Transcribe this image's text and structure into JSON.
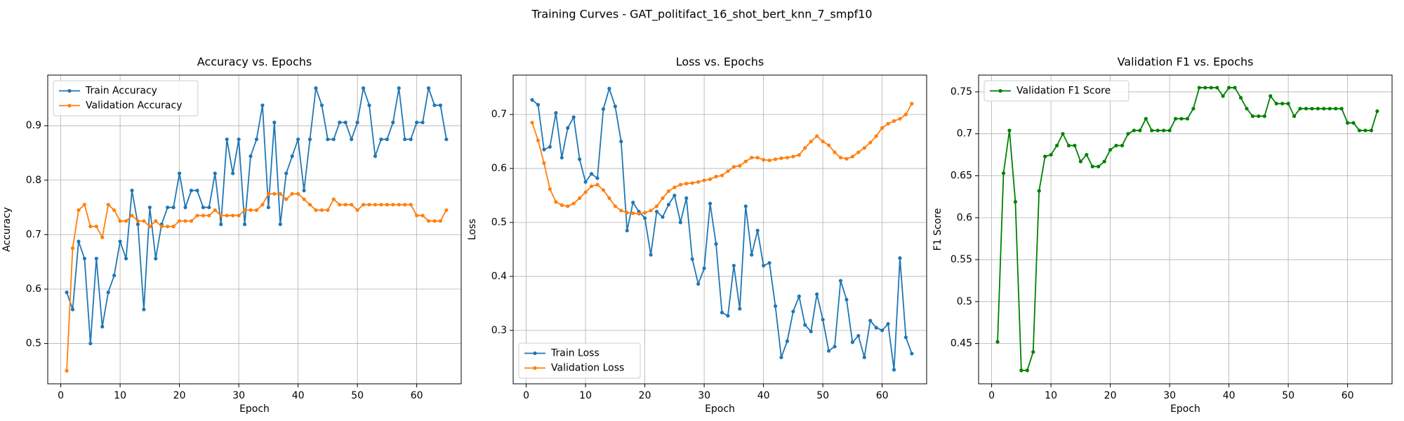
{
  "title": "Training Curves - GAT_politifact_16_shot_bert_knn_7_smpf10",
  "chart_data": [
    {
      "type": "line",
      "title": "Accuracy vs. Epochs",
      "x_label": "Epoch",
      "y_label": "Accuracy",
      "x": [
        1,
        2,
        3,
        4,
        5,
        6,
        7,
        8,
        9,
        10,
        11,
        12,
        13,
        14,
        15,
        16,
        17,
        18,
        19,
        20,
        21,
        22,
        23,
        24,
        25,
        26,
        27,
        28,
        29,
        30,
        31,
        32,
        33,
        34,
        35,
        36,
        37,
        38,
        39,
        40,
        41,
        42,
        43,
        44,
        45,
        46,
        47,
        48,
        49,
        50,
        51,
        52,
        53,
        54,
        55,
        56,
        57,
        58,
        59,
        60,
        61,
        62,
        63,
        64,
        65
      ],
      "series": [
        {
          "name": "Train Accuracy",
          "color": "#1f77b4",
          "values": [
            0.594,
            0.5625,
            0.6875,
            0.656,
            0.5,
            0.656,
            0.531,
            0.594,
            0.625,
            0.6875,
            0.656,
            0.781,
            0.719,
            0.5625,
            0.75,
            0.656,
            0.719,
            0.75,
            0.75,
            0.8125,
            0.75,
            0.781,
            0.781,
            0.75,
            0.75,
            0.8125,
            0.719,
            0.875,
            0.8125,
            0.875,
            0.719,
            0.844,
            0.875,
            0.9375,
            0.75,
            0.906,
            0.719,
            0.8125,
            0.844,
            0.875,
            0.781,
            0.875,
            0.969,
            0.9375,
            0.875,
            0.875,
            0.906,
            0.906,
            0.875,
            0.906,
            0.969,
            0.9375,
            0.844,
            0.875,
            0.875,
            0.906,
            0.969,
            0.875,
            0.875,
            0.906,
            0.906,
            0.969,
            0.9375,
            0.9375,
            0.875
          ]
        },
        {
          "name": "Validation Accuracy",
          "color": "#ff7f0e",
          "values": [
            0.45,
            0.675,
            0.745,
            0.755,
            0.715,
            0.715,
            0.695,
            0.755,
            0.745,
            0.725,
            0.725,
            0.735,
            0.725,
            0.725,
            0.715,
            0.725,
            0.715,
            0.715,
            0.715,
            0.725,
            0.725,
            0.725,
            0.735,
            0.735,
            0.735,
            0.745,
            0.735,
            0.735,
            0.735,
            0.735,
            0.745,
            0.745,
            0.745,
            0.755,
            0.775,
            0.775,
            0.775,
            0.765,
            0.775,
            0.775,
            0.765,
            0.755,
            0.745,
            0.745,
            0.745,
            0.765,
            0.755,
            0.755,
            0.755,
            0.745,
            0.755,
            0.755,
            0.755,
            0.755,
            0.755,
            0.755,
            0.755,
            0.755,
            0.755,
            0.735,
            0.735,
            0.725,
            0.725,
            0.725,
            0.745
          ]
        }
      ],
      "xlim": [
        -2.2,
        67.5
      ],
      "xticks": [
        0,
        10,
        20,
        30,
        40,
        50,
        60
      ],
      "ylim": [
        0.426,
        0.993
      ],
      "yticks": [
        0.5,
        0.6,
        0.7,
        0.8,
        0.9
      ],
      "grid": true,
      "legend": "upper left"
    },
    {
      "type": "line",
      "title": "Loss vs. Epochs",
      "x_label": "Epoch",
      "y_label": "Loss",
      "x": [
        1,
        2,
        3,
        4,
        5,
        6,
        7,
        8,
        9,
        10,
        11,
        12,
        13,
        14,
        15,
        16,
        17,
        18,
        19,
        20,
        21,
        22,
        23,
        24,
        25,
        26,
        27,
        28,
        29,
        30,
        31,
        32,
        33,
        34,
        35,
        36,
        37,
        38,
        39,
        40,
        41,
        42,
        43,
        44,
        45,
        46,
        47,
        48,
        49,
        50,
        51,
        52,
        53,
        54,
        55,
        56,
        57,
        58,
        59,
        60,
        61,
        62,
        63,
        64,
        65
      ],
      "series": [
        {
          "name": "Train Loss",
          "color": "#1f77b4",
          "values": [
            0.727,
            0.718,
            0.635,
            0.64,
            0.703,
            0.62,
            0.675,
            0.695,
            0.617,
            0.575,
            0.59,
            0.582,
            0.71,
            0.748,
            0.715,
            0.65,
            0.485,
            0.537,
            0.52,
            0.508,
            0.44,
            0.52,
            0.51,
            0.533,
            0.55,
            0.5,
            0.545,
            0.432,
            0.386,
            0.415,
            0.535,
            0.46,
            0.333,
            0.327,
            0.42,
            0.34,
            0.53,
            0.44,
            0.485,
            0.42,
            0.425,
            0.345,
            0.25,
            0.28,
            0.335,
            0.363,
            0.31,
            0.298,
            0.367,
            0.32,
            0.262,
            0.27,
            0.392,
            0.357,
            0.278,
            0.29,
            0.25,
            0.318,
            0.305,
            0.3,
            0.312,
            0.227,
            0.434,
            0.287,
            0.257
          ]
        },
        {
          "name": "Validation Loss",
          "color": "#ff7f0e",
          "values": [
            0.685,
            0.652,
            0.61,
            0.562,
            0.538,
            0.532,
            0.53,
            0.535,
            0.545,
            0.556,
            0.567,
            0.57,
            0.56,
            0.545,
            0.53,
            0.522,
            0.518,
            0.517,
            0.516,
            0.518,
            0.522,
            0.53,
            0.545,
            0.558,
            0.565,
            0.57,
            0.572,
            0.573,
            0.575,
            0.578,
            0.58,
            0.585,
            0.587,
            0.595,
            0.603,
            0.605,
            0.613,
            0.62,
            0.62,
            0.616,
            0.615,
            0.617,
            0.619,
            0.62,
            0.622,
            0.625,
            0.638,
            0.65,
            0.66,
            0.65,
            0.643,
            0.63,
            0.62,
            0.618,
            0.622,
            0.63,
            0.638,
            0.648,
            0.66,
            0.675,
            0.683,
            0.688,
            0.692,
            0.7,
            0.72
          ]
        }
      ],
      "xlim": [
        -2.2,
        67.5
      ],
      "xticks": [
        0,
        10,
        20,
        30,
        40,
        50,
        60
      ],
      "ylim": [
        0.201,
        0.773
      ],
      "yticks": [
        0.3,
        0.4,
        0.5,
        0.6,
        0.7
      ],
      "grid": true,
      "legend": "lower left"
    },
    {
      "type": "line",
      "title": "Validation F1 vs. Epochs",
      "x_label": "Epoch",
      "y_label": "F1 Score",
      "x": [
        1,
        2,
        3,
        4,
        5,
        6,
        7,
        8,
        9,
        10,
        11,
        12,
        13,
        14,
        15,
        16,
        17,
        18,
        19,
        20,
        21,
        22,
        23,
        24,
        25,
        26,
        27,
        28,
        29,
        30,
        31,
        32,
        33,
        34,
        35,
        36,
        37,
        38,
        39,
        40,
        41,
        42,
        43,
        44,
        45,
        46,
        47,
        48,
        49,
        50,
        51,
        52,
        53,
        54,
        55,
        56,
        57,
        58,
        59,
        60,
        61,
        62,
        63,
        64,
        65
      ],
      "series": [
        {
          "name": "Validation F1 Score",
          "color": "#008000",
          "values": [
            0.452,
            0.653,
            0.704,
            0.619,
            0.418,
            0.418,
            0.44,
            0.632,
            0.673,
            0.675,
            0.686,
            0.7,
            0.686,
            0.686,
            0.667,
            0.675,
            0.661,
            0.661,
            0.667,
            0.681,
            0.686,
            0.686,
            0.7,
            0.704,
            0.704,
            0.718,
            0.704,
            0.704,
            0.704,
            0.704,
            0.718,
            0.718,
            0.718,
            0.73,
            0.755,
            0.755,
            0.755,
            0.755,
            0.745,
            0.755,
            0.755,
            0.743,
            0.73,
            0.721,
            0.721,
            0.721,
            0.745,
            0.736,
            0.736,
            0.736,
            0.721,
            0.73,
            0.73,
            0.73,
            0.73,
            0.73,
            0.73,
            0.73,
            0.73,
            0.713,
            0.713,
            0.704,
            0.704,
            0.704,
            0.727
          ]
        }
      ],
      "xlim": [
        -2.2,
        67.5
      ],
      "xticks": [
        0,
        10,
        20,
        30,
        40,
        50,
        60
      ],
      "ylim": [
        0.402,
        0.77
      ],
      "yticks": [
        0.45,
        0.5,
        0.55,
        0.6,
        0.65,
        0.7,
        0.75
      ],
      "grid": true,
      "legend": "upper left"
    }
  ]
}
